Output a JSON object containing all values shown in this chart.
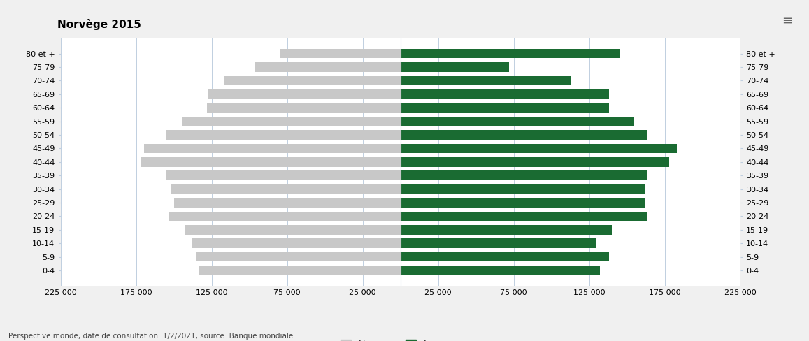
{
  "title": "Norvège 2015",
  "age_groups": [
    "0-4",
    "5-9",
    "10-14",
    "15-19",
    "20-24",
    "25-29",
    "30-34",
    "35-39",
    "40-44",
    "45-49",
    "50-54",
    "55-59",
    "60-64",
    "65-69",
    "70-74",
    "75-79",
    "80 et +"
  ],
  "hommes": [
    133000,
    135000,
    138000,
    143000,
    153000,
    150000,
    152000,
    155000,
    172000,
    170000,
    155000,
    145000,
    128000,
    127000,
    117000,
    96000,
    80000
  ],
  "femmes": [
    132000,
    138000,
    130000,
    140000,
    163000,
    162000,
    162000,
    163000,
    178000,
    183000,
    163000,
    155000,
    138000,
    138000,
    113000,
    72000,
    145000
  ],
  "xlim": 225000,
  "color_hommes": "#c8c8c8",
  "color_femmes": "#1a6b32",
  "background_color": "#f0f0f0",
  "bar_background": "#ffffff",
  "grid_color": "#c0cfe0",
  "source": "Perspective monde, date de consultation: 1/2/2021, source: Banque mondiale"
}
